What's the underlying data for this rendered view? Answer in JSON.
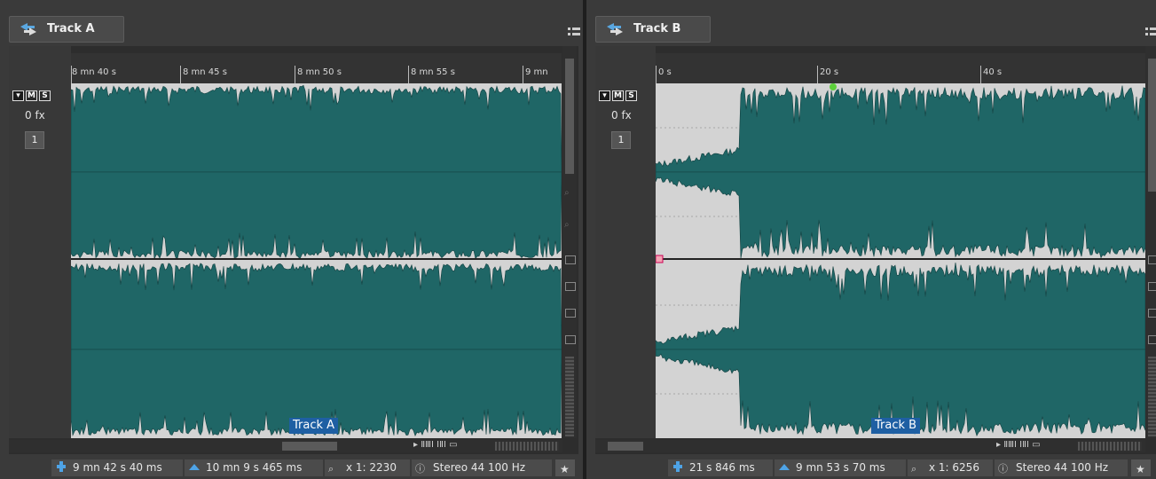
{
  "colors": {
    "waveform": "#1f6666",
    "waveform_edge": "#123f3f",
    "bg_dark": "#2d2d2d",
    "clip_label": "#1e5fa3",
    "grid_light": "#d3d3d3"
  },
  "track_a": {
    "tab_title": "Track A",
    "tab_icon": "track-icon",
    "ruler_labels": [
      "8 mn 40 s",
      "8 mn 45 s",
      "8 mn 50 s",
      "8 mn 55 s",
      "9 mn"
    ],
    "mute_label": "M",
    "solo_label": "S",
    "fx_label": "0 fx",
    "channel_button": "1",
    "clip_label": "Track A",
    "status": {
      "cursor": "9 mn 42 s 40 ms",
      "length": "10 mn 9 s 465 ms",
      "zoom": "x 1: 2230",
      "info": "Stereo 44 100 Hz"
    }
  },
  "track_b": {
    "tab_title": "Track B",
    "tab_icon": "track-icon",
    "ruler_labels": [
      "0 s",
      "20 s",
      "40 s"
    ],
    "mute_label": "M",
    "solo_label": "S",
    "fx_label": "0 fx",
    "channel_button": "1",
    "clip_label": "Track B",
    "status": {
      "cursor": "21 s 846 ms",
      "length": "9 mn 53 s 70 ms",
      "zoom": "x 1: 6256",
      "info": "Stereo 44 100 Hz"
    }
  }
}
